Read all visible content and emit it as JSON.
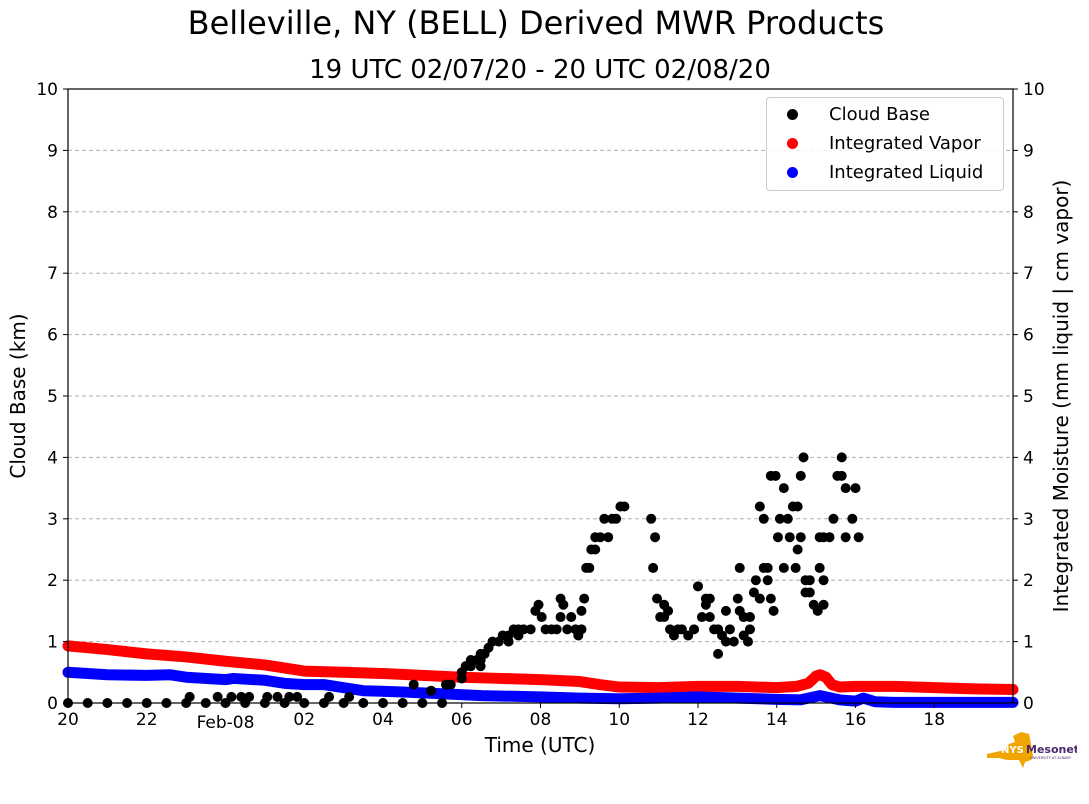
{
  "chart_data": {
    "type": "scatter",
    "title": "Belleville, NY (BELL) Derived MWR Products",
    "subtitle": "19 UTC 02/07/20 - 20 UTC 02/08/20",
    "xlabel": "Time (UTC)",
    "ylabel": "Cloud Base (km)",
    "ylabel_right": "Integrated Moisture (mm liquid | cm vapor)",
    "x_units": "hours after 00 UTC 02/07/20",
    "xlim": [
      20,
      44
    ],
    "ylim": [
      0,
      10
    ],
    "ylim_right": [
      0,
      10
    ],
    "grid": "horizontal dashed",
    "legend_position": "top-right",
    "x_ticks": [
      {
        "value": 20,
        "label": "20"
      },
      {
        "value": 22,
        "label": "22"
      },
      {
        "value": 24,
        "label": "Feb-08"
      },
      {
        "value": 26,
        "label": "02"
      },
      {
        "value": 28,
        "label": "04"
      },
      {
        "value": 30,
        "label": "06"
      },
      {
        "value": 32,
        "label": "08"
      },
      {
        "value": 34,
        "label": "10"
      },
      {
        "value": 36,
        "label": "12"
      },
      {
        "value": 38,
        "label": "14"
      },
      {
        "value": 40,
        "label": "16"
      },
      {
        "value": 42,
        "label": "18"
      }
    ],
    "y_ticks": [
      "0",
      "1",
      "2",
      "3",
      "4",
      "5",
      "6",
      "7",
      "8",
      "9",
      "10"
    ],
    "colors": {
      "cloud_base": "#000000",
      "vapor": "#ff0000",
      "liquid": "#0000ff",
      "grid": "#b0b0b0"
    },
    "series": [
      {
        "name": "Cloud Base",
        "kind": "scatter",
        "color": "#000000",
        "points": [
          [
            20,
            0
          ],
          [
            20.5,
            0
          ],
          [
            21,
            0
          ],
          [
            21.5,
            0
          ],
          [
            22,
            0
          ],
          [
            22.5,
            0
          ],
          [
            23,
            0
          ],
          [
            23.5,
            0
          ],
          [
            24,
            0
          ],
          [
            24.5,
            0
          ],
          [
            25,
            0
          ],
          [
            25.5,
            0
          ],
          [
            26,
            0
          ],
          [
            26.5,
            0
          ],
          [
            27,
            0
          ],
          [
            27.5,
            0
          ],
          [
            28,
            0
          ],
          [
            28.5,
            0
          ],
          [
            29,
            0
          ],
          [
            29.5,
            0
          ],
          [
            23.09,
            0.1
          ],
          [
            23.8,
            0.1
          ],
          [
            24.15,
            0.1
          ],
          [
            24.4,
            0.1
          ],
          [
            24.6,
            0.1
          ],
          [
            25.06,
            0.1
          ],
          [
            25.32,
            0.1
          ],
          [
            25.62,
            0.1
          ],
          [
            25.82,
            0.1
          ],
          [
            26.63,
            0.1
          ],
          [
            27.14,
            0.1
          ],
          [
            28.78,
            0.3
          ],
          [
            29.22,
            0.2
          ],
          [
            29.6,
            0.3
          ],
          [
            29.72,
            0.3
          ],
          [
            30.0,
            0.5
          ],
          [
            30.0,
            0.4
          ],
          [
            30.1,
            0.6
          ],
          [
            30.23,
            0.7
          ],
          [
            30.23,
            0.6
          ],
          [
            30.38,
            0.7
          ],
          [
            30.48,
            0.7
          ],
          [
            30.48,
            0.6
          ],
          [
            30.48,
            0.8
          ],
          [
            30.58,
            0.8
          ],
          [
            30.68,
            0.9
          ],
          [
            30.78,
            1.0
          ],
          [
            30.94,
            1.0
          ],
          [
            31.04,
            1.1
          ],
          [
            31.19,
            1.0
          ],
          [
            31.19,
            1.1
          ],
          [
            31.32,
            1.2
          ],
          [
            31.44,
            1.2
          ],
          [
            31.44,
            1.1
          ],
          [
            31.57,
            1.2
          ],
          [
            31.75,
            1.2
          ],
          [
            31.87,
            1.5
          ],
          [
            31.95,
            1.6
          ],
          [
            32.03,
            1.4
          ],
          [
            32.13,
            1.2
          ],
          [
            32.28,
            1.2
          ],
          [
            32.41,
            1.2
          ],
          [
            32.51,
            1.4
          ],
          [
            32.51,
            1.7
          ],
          [
            32.58,
            1.6
          ],
          [
            32.68,
            1.2
          ],
          [
            32.78,
            1.4
          ],
          [
            32.89,
            1.2
          ],
          [
            32.96,
            1.1
          ],
          [
            33.04,
            1.2
          ],
          [
            33.04,
            1.5
          ],
          [
            33.11,
            1.7
          ],
          [
            33.16,
            2.2
          ],
          [
            33.24,
            2.2
          ],
          [
            33.29,
            2.5
          ],
          [
            33.39,
            2.5
          ],
          [
            33.39,
            2.7
          ],
          [
            33.52,
            2.7
          ],
          [
            33.62,
            3.0
          ],
          [
            33.72,
            2.7
          ],
          [
            33.82,
            3.0
          ],
          [
            33.92,
            3.0
          ],
          [
            34.03,
            3.2
          ],
          [
            34.13,
            3.2
          ],
          [
            34.81,
            3.0
          ],
          [
            34.86,
            2.2
          ],
          [
            34.91,
            2.7
          ],
          [
            34.96,
            1.7
          ],
          [
            35.04,
            1.4
          ],
          [
            35.14,
            1.4
          ],
          [
            35.14,
            1.6
          ],
          [
            35.24,
            1.5
          ],
          [
            35.29,
            1.2
          ],
          [
            35.39,
            1.1
          ],
          [
            35.49,
            1.2
          ],
          [
            35.59,
            1.2
          ],
          [
            35.75,
            1.1
          ],
          [
            35.9,
            1.2
          ],
          [
            36.0,
            1.9
          ],
          [
            36.1,
            1.4
          ],
          [
            36.2,
            1.6
          ],
          [
            36.2,
            1.7
          ],
          [
            36.3,
            1.7
          ],
          [
            36.3,
            1.4
          ],
          [
            36.41,
            1.2
          ],
          [
            36.51,
            1.2
          ],
          [
            36.51,
            0.8
          ],
          [
            36.61,
            1.1
          ],
          [
            36.71,
            1.0
          ],
          [
            36.71,
            1.5
          ],
          [
            36.81,
            1.2
          ],
          [
            36.91,
            1.0
          ],
          [
            37.01,
            1.7
          ],
          [
            37.06,
            2.2
          ],
          [
            37.06,
            1.5
          ],
          [
            37.16,
            1.4
          ],
          [
            37.16,
            1.1
          ],
          [
            37.27,
            1.0
          ],
          [
            37.32,
            1.2
          ],
          [
            37.32,
            1.4
          ],
          [
            37.42,
            1.8
          ],
          [
            37.47,
            2.0
          ],
          [
            37.57,
            1.7
          ],
          [
            37.57,
            3.2
          ],
          [
            37.67,
            2.2
          ],
          [
            37.67,
            3.0
          ],
          [
            37.77,
            2.0
          ],
          [
            37.77,
            2.2
          ],
          [
            37.85,
            3.7
          ],
          [
            37.85,
            1.7
          ],
          [
            37.92,
            1.5
          ],
          [
            37.97,
            3.7
          ],
          [
            38.03,
            2.7
          ],
          [
            38.08,
            3.0
          ],
          [
            38.18,
            3.5
          ],
          [
            38.18,
            2.2
          ],
          [
            38.28,
            3.0
          ],
          [
            38.33,
            2.7
          ],
          [
            38.41,
            3.2
          ],
          [
            38.48,
            2.2
          ],
          [
            38.53,
            3.2
          ],
          [
            38.53,
            2.5
          ],
          [
            38.61,
            3.7
          ],
          [
            38.61,
            2.7
          ],
          [
            38.68,
            4.0
          ],
          [
            38.73,
            2.0
          ],
          [
            38.73,
            1.8
          ],
          [
            38.84,
            2.0
          ],
          [
            38.84,
            1.8
          ],
          [
            38.94,
            1.6
          ],
          [
            39.04,
            1.5
          ],
          [
            39.09,
            2.7
          ],
          [
            39.09,
            2.2
          ],
          [
            39.19,
            2.0
          ],
          [
            39.19,
            1.6
          ],
          [
            39.19,
            2.7
          ],
          [
            39.34,
            2.7
          ],
          [
            39.44,
            3.0
          ],
          [
            39.54,
            3.7
          ],
          [
            39.65,
            3.7
          ],
          [
            39.65,
            4.0
          ],
          [
            39.75,
            2.7
          ],
          [
            39.75,
            3.5
          ],
          [
            39.92,
            3.0
          ],
          [
            40.0,
            3.5
          ],
          [
            40.08,
            2.7
          ]
        ]
      },
      {
        "name": "Integrated Vapor",
        "kind": "band",
        "color": "#ff0000",
        "points": [
          [
            20,
            0.93
          ],
          [
            21,
            0.87
          ],
          [
            22,
            0.8
          ],
          [
            23,
            0.75
          ],
          [
            24,
            0.68
          ],
          [
            25,
            0.62
          ],
          [
            26,
            0.52
          ],
          [
            27,
            0.5
          ],
          [
            28,
            0.48
          ],
          [
            29,
            0.45
          ],
          [
            30,
            0.42
          ],
          [
            31,
            0.4
          ],
          [
            32,
            0.38
          ],
          [
            33,
            0.35
          ],
          [
            33.5,
            0.3
          ],
          [
            34,
            0.26
          ],
          [
            35,
            0.25
          ],
          [
            36,
            0.27
          ],
          [
            37,
            0.27
          ],
          [
            38,
            0.25
          ],
          [
            38.5,
            0.27
          ],
          [
            38.8,
            0.32
          ],
          [
            39.0,
            0.44
          ],
          [
            39.1,
            0.46
          ],
          [
            39.25,
            0.42
          ],
          [
            39.4,
            0.3
          ],
          [
            39.6,
            0.26
          ],
          [
            40,
            0.27
          ],
          [
            41,
            0.27
          ],
          [
            42,
            0.25
          ],
          [
            43,
            0.23
          ],
          [
            44,
            0.22
          ]
        ]
      },
      {
        "name": "Integrated Liquid",
        "kind": "band",
        "color": "#0000ff",
        "points": [
          [
            20,
            0.5
          ],
          [
            21,
            0.46
          ],
          [
            22,
            0.45
          ],
          [
            22.6,
            0.46
          ],
          [
            23,
            0.42
          ],
          [
            24,
            0.38
          ],
          [
            24.2,
            0.4
          ],
          [
            25,
            0.37
          ],
          [
            25.5,
            0.32
          ],
          [
            26,
            0.3
          ],
          [
            26.5,
            0.3
          ],
          [
            27,
            0.25
          ],
          [
            27.5,
            0.2
          ],
          [
            28.5,
            0.18
          ],
          [
            29.5,
            0.15
          ],
          [
            30.5,
            0.12
          ],
          [
            32,
            0.1
          ],
          [
            33,
            0.08
          ],
          [
            34,
            0.07
          ],
          [
            35,
            0.08
          ],
          [
            36,
            0.1
          ],
          [
            37,
            0.08
          ],
          [
            38,
            0.06
          ],
          [
            38.6,
            0.05
          ],
          [
            39.1,
            0.12
          ],
          [
            39.6,
            0.05
          ],
          [
            40,
            0.03
          ],
          [
            40.2,
            0.08
          ],
          [
            40.5,
            0.02
          ],
          [
            41,
            0.01
          ],
          [
            44,
            0.01
          ]
        ]
      }
    ]
  },
  "logo": {
    "text": "NYS Mesonet",
    "subtext": "UNIVERSITY AT ALBANY"
  }
}
